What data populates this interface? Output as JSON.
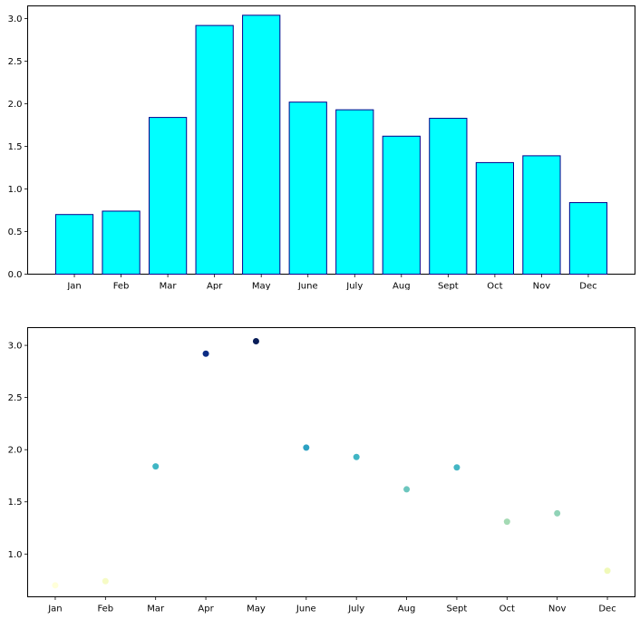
{
  "chart_data": [
    {
      "type": "bar",
      "categories": [
        "Jan",
        "Feb",
        "Mar",
        "Apr",
        "May",
        "June",
        "July",
        "Aug",
        "Sept",
        "Oct",
        "Nov",
        "Dec"
      ],
      "values": [
        0.7,
        0.74,
        1.84,
        2.92,
        3.04,
        2.02,
        1.93,
        1.62,
        1.83,
        1.31,
        1.39,
        0.84
      ],
      "ylim": [
        0,
        3.15
      ],
      "yticks": [
        "0.0",
        "0.5",
        "1.0",
        "1.5",
        "2.0",
        "2.5",
        "3.0"
      ],
      "bar_fill": "#00ffff",
      "bar_edge": "#00008b",
      "grid": false
    },
    {
      "type": "scatter",
      "categories": [
        "Jan",
        "Feb",
        "Mar",
        "Apr",
        "May",
        "June",
        "July",
        "Aug",
        "Sept",
        "Oct",
        "Nov",
        "Dec"
      ],
      "values": [
        0.7,
        0.74,
        1.84,
        2.92,
        3.04,
        2.02,
        1.93,
        1.62,
        1.83,
        1.31,
        1.39,
        0.84
      ],
      "ylim": [
        0.59,
        3.17
      ],
      "yticks": [
        "1.0",
        "1.5",
        "2.0",
        "2.5",
        "3.0"
      ],
      "colormap": "YlGnBu",
      "point_colors": [
        "#ffffd9",
        "#f6fbc5",
        "#3fb6c4",
        "#0c2c84",
        "#081d58",
        "#2ca1c2",
        "#40b5c4",
        "#6cc6be",
        "#44b6c4",
        "#a4dab4",
        "#91d3b7",
        "#f0f9b8"
      ],
      "grid": false
    }
  ]
}
